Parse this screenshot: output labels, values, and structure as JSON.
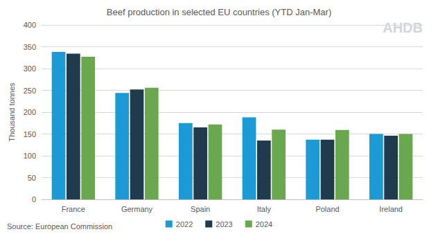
{
  "chart_data": {
    "type": "bar",
    "title": "Beef production in selected EU countries (YTD Jan-Mar)",
    "y_label": "Thousand tonnes",
    "source": "Source: European Commission",
    "logo": "AHDB",
    "categories": [
      "France",
      "Germany",
      "Spain",
      "Italy",
      "Poland",
      "Ireland"
    ],
    "series": [
      {
        "name": "2022",
        "color": "#1b9ad6",
        "values": [
          338,
          244,
          175,
          188,
          137,
          150
        ]
      },
      {
        "name": "2023",
        "color": "#1f3b4d",
        "values": [
          334,
          252,
          165,
          135,
          137,
          146
        ]
      },
      {
        "name": "2024",
        "color": "#6aa84f",
        "values": [
          327,
          256,
          172,
          160,
          159,
          150
        ]
      }
    ],
    "ylim": [
      0,
      400
    ],
    "yticks": [
      0,
      50,
      100,
      150,
      200,
      250,
      300,
      350,
      400
    ],
    "grid": true,
    "legend": "bottom"
  }
}
